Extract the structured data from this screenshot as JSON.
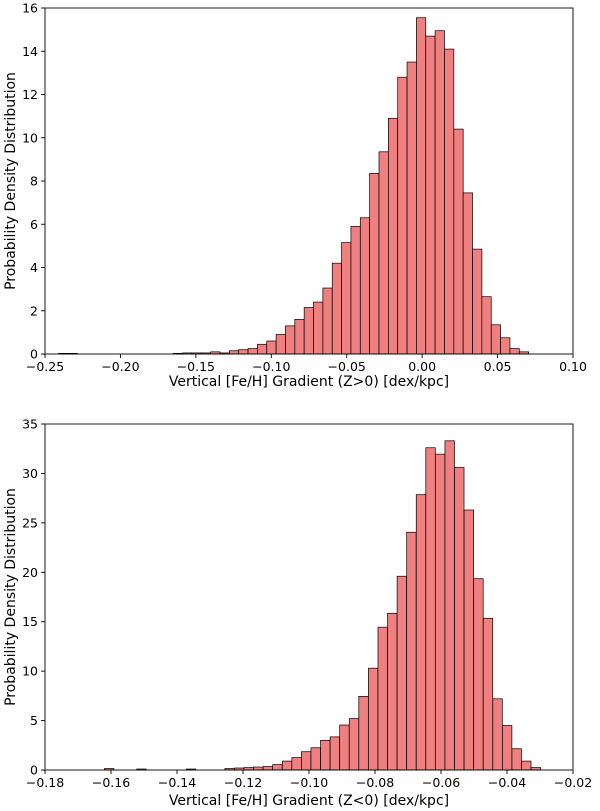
{
  "chart_data": [
    {
      "type": "bar",
      "title": "",
      "xlabel": "Vertical [Fe/H] Gradient (Z>0) [dex/kpc]",
      "ylabel": "Probability Density Distribution",
      "xlim": [
        -0.25,
        0.1
      ],
      "ylim": [
        0,
        16
      ],
      "xticks": [
        -0.25,
        -0.2,
        -0.15,
        -0.1,
        -0.05,
        0.0,
        0.05,
        0.1
      ],
      "xtick_labels": [
        "−0.25",
        "−0.20",
        "−0.15",
        "−0.10",
        "−0.05",
        "0.00",
        "0.05",
        "0.10"
      ],
      "yticks": [
        0,
        2,
        4,
        6,
        8,
        10,
        12,
        14,
        16
      ],
      "ytick_labels": [
        "0",
        "2",
        "4",
        "6",
        "8",
        "10",
        "12",
        "14",
        "16"
      ],
      "bin_width": 0.0062,
      "bar_color": "#f08080",
      "edge_color": "#000000",
      "bins": [
        {
          "x0": -0.241,
          "h": 0.03
        },
        {
          "x0": -0.2348,
          "h": 0.03
        },
        {
          "x0": -0.165,
          "h": 0.03
        },
        {
          "x0": -0.1588,
          "h": 0.05
        },
        {
          "x0": -0.1526,
          "h": 0.05
        },
        {
          "x0": -0.1464,
          "h": 0.05
        },
        {
          "x0": -0.1402,
          "h": 0.1
        },
        {
          "x0": -0.134,
          "h": 0.05
        },
        {
          "x0": -0.1278,
          "h": 0.15
        },
        {
          "x0": -0.1216,
          "h": 0.2
        },
        {
          "x0": -0.1154,
          "h": 0.25
        },
        {
          "x0": -0.1092,
          "h": 0.45
        },
        {
          "x0": -0.103,
          "h": 0.6
        },
        {
          "x0": -0.0968,
          "h": 0.9
        },
        {
          "x0": -0.0906,
          "h": 1.3
        },
        {
          "x0": -0.0844,
          "h": 1.6
        },
        {
          "x0": -0.0782,
          "h": 2.15
        },
        {
          "x0": -0.072,
          "h": 2.4
        },
        {
          "x0": -0.0658,
          "h": 3.05
        },
        {
          "x0": -0.0596,
          "h": 4.2
        },
        {
          "x0": -0.0534,
          "h": 5.15
        },
        {
          "x0": -0.0472,
          "h": 5.9
        },
        {
          "x0": -0.041,
          "h": 6.3
        },
        {
          "x0": -0.0348,
          "h": 8.35
        },
        {
          "x0": -0.0286,
          "h": 9.35
        },
        {
          "x0": -0.0224,
          "h": 10.9
        },
        {
          "x0": -0.0162,
          "h": 12.8
        },
        {
          "x0": -0.01,
          "h": 13.5
        },
        {
          "x0": -0.0038,
          "h": 15.55
        },
        {
          "x0": 0.0024,
          "h": 14.7
        },
        {
          "x0": 0.0086,
          "h": 14.95
        },
        {
          "x0": 0.0148,
          "h": 14.1
        },
        {
          "x0": 0.021,
          "h": 10.4
        },
        {
          "x0": 0.0272,
          "h": 7.45
        },
        {
          "x0": 0.0334,
          "h": 4.85
        },
        {
          "x0": 0.0396,
          "h": 2.65
        },
        {
          "x0": 0.0458,
          "h": 1.35
        },
        {
          "x0": 0.052,
          "h": 0.75
        },
        {
          "x0": 0.0582,
          "h": 0.25
        },
        {
          "x0": 0.0644,
          "h": 0.1
        }
      ]
    },
    {
      "type": "bar",
      "title": "",
      "xlabel": "Vertical [Fe/H] Gradient (Z<0) [dex/kpc]",
      "ylabel": "Probability Density Distribution",
      "xlim": [
        -0.18,
        -0.02
      ],
      "ylim": [
        0,
        35
      ],
      "xticks": [
        -0.18,
        -0.16,
        -0.14,
        -0.12,
        -0.1,
        -0.08,
        -0.06,
        -0.04,
        -0.02
      ],
      "xtick_labels": [
        "−0.18",
        "−0.16",
        "−0.14",
        "−0.12",
        "−0.10",
        "−0.08",
        "−0.06",
        "−0.04",
        "−0.02"
      ],
      "yticks": [
        0,
        5,
        10,
        15,
        20,
        25,
        30,
        35
      ],
      "ytick_labels": [
        "0",
        "5",
        "10",
        "15",
        "20",
        "25",
        "30",
        "35"
      ],
      "bin_width": 0.00288,
      "bar_color": "#f08080",
      "edge_color": "#000000",
      "bins": [
        {
          "x0": -0.162,
          "h": 0.15
        },
        {
          "x0": -0.1522,
          "h": 0.1
        },
        {
          "x0": -0.1372,
          "h": 0.1
        },
        {
          "x0": -0.1255,
          "h": 0.15
        },
        {
          "x0": -0.1226,
          "h": 0.2
        },
        {
          "x0": -0.1197,
          "h": 0.25
        },
        {
          "x0": -0.1168,
          "h": 0.3
        },
        {
          "x0": -0.1139,
          "h": 0.35
        },
        {
          "x0": -0.111,
          "h": 0.55
        },
        {
          "x0": -0.1081,
          "h": 0.9
        },
        {
          "x0": -0.1052,
          "h": 1.25
        },
        {
          "x0": -0.1023,
          "h": 1.85
        },
        {
          "x0": -0.0994,
          "h": 2.25
        },
        {
          "x0": -0.0965,
          "h": 3.0
        },
        {
          "x0": -0.0936,
          "h": 3.35
        },
        {
          "x0": -0.0907,
          "h": 4.55
        },
        {
          "x0": -0.0878,
          "h": 5.2
        },
        {
          "x0": -0.0849,
          "h": 7.45
        },
        {
          "x0": -0.082,
          "h": 10.3
        },
        {
          "x0": -0.0791,
          "h": 14.45
        },
        {
          "x0": -0.0762,
          "h": 15.85
        },
        {
          "x0": -0.0733,
          "h": 19.6
        },
        {
          "x0": -0.0704,
          "h": 24.05
        },
        {
          "x0": -0.0675,
          "h": 27.85
        },
        {
          "x0": -0.0646,
          "h": 32.6
        },
        {
          "x0": -0.0617,
          "h": 31.95
        },
        {
          "x0": -0.0588,
          "h": 33.3
        },
        {
          "x0": -0.0559,
          "h": 30.6
        },
        {
          "x0": -0.053,
          "h": 26.3
        },
        {
          "x0": -0.0501,
          "h": 19.35
        },
        {
          "x0": -0.0472,
          "h": 15.35
        },
        {
          "x0": -0.0443,
          "h": 7.2
        },
        {
          "x0": -0.0414,
          "h": 4.5
        },
        {
          "x0": -0.0385,
          "h": 2.15
        },
        {
          "x0": -0.0356,
          "h": 0.9
        },
        {
          "x0": -0.0327,
          "h": 0.25
        }
      ]
    }
  ]
}
